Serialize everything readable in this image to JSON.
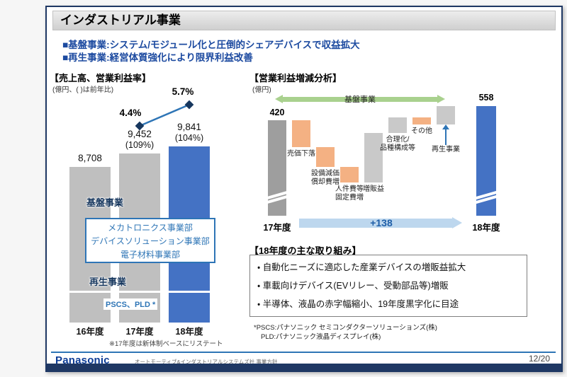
{
  "slide": {
    "title": "インダストリアル事業",
    "bullets": [
      "■基盤事業:システム/モジュール化と圧倒的シェアデバイスで収益拡大",
      "■再生事業:経営体質強化により限界利益改善"
    ]
  },
  "chart_data": [
    {
      "type": "bar",
      "title": "【売上高、営業利益率】",
      "unit_label": "(億円、( )は前年比)",
      "categories": [
        "16年度",
        "17年度",
        "18年度"
      ],
      "values": [
        8708,
        9452,
        9841
      ],
      "value_labels": [
        "8,708",
        "9,452",
        "9,841"
      ],
      "yoy_labels": [
        "(109%)",
        "(104%)"
      ],
      "line_series": {
        "name": "営業利益率",
        "points": [
          {
            "category": "17年度",
            "label": "4.4%"
          },
          {
            "category": "18年度",
            "label": "5.7%"
          }
        ]
      },
      "annotations": {
        "kiban_label": "基盤事業",
        "divisions": [
          "メカトロニクス事業部",
          "デバイスソリューション事業部",
          "電子材料事業部"
        ],
        "saisei_label": "再生事業",
        "saisei_detail": "PSCS、PLD *"
      },
      "footnote": "※17年度は新体制ベースにリステート",
      "colors": {
        "bar_gray": "#bfbfbf",
        "bar_blue": "#4472c4",
        "line": "#2e75b6",
        "marker": "#17375e"
      }
    },
    {
      "type": "waterfall",
      "title": "【営業利益増減分析】",
      "unit_label": "(億円)",
      "group_arrow_label": "基盤事業",
      "start": {
        "category": "17年度",
        "value": 420,
        "label": "420"
      },
      "end": {
        "category": "18年度",
        "value": 558,
        "label": "558"
      },
      "net_change_label": "+138",
      "segments": [
        {
          "label": "売価下落",
          "lines": [
            "売価下落"
          ],
          "direction": "decrease"
        },
        {
          "label": "設備減価償却費増",
          "lines": [
            "設備減価",
            "償却費増"
          ],
          "direction": "decrease"
        },
        {
          "label": "人件費等固定費増",
          "lines": [
            "人件費等",
            "固定費増"
          ],
          "direction": "decrease"
        },
        {
          "label": "増販益",
          "lines": [
            "増販益"
          ],
          "direction": "increase"
        },
        {
          "label": "合理化・品種構成等",
          "lines": [
            "合理化/",
            "品種構成等"
          ],
          "direction": "increase"
        },
        {
          "label": "その他",
          "lines": [
            "その他"
          ],
          "direction": "decrease"
        },
        {
          "label": "再生事業",
          "lines": [
            "再生事業"
          ],
          "direction": "increase"
        }
      ],
      "colors": {
        "decrease": "#f4b183",
        "increase": "#c9c9c9",
        "start_bar": "#9e9e9e",
        "end_bar": "#4472c4",
        "group_arrow": "#a9d18e",
        "net_arrow": "#bdd7ee"
      }
    }
  ],
  "initiatives": {
    "heading": "【18年度の主な取り組み】",
    "items": [
      "・ 自動化ニーズに適応した産業デバイスの増販益拡大",
      "・ 車載向けデバイス(EVリレー、受動部品等)増販",
      "・ 半導体、液晶の赤字幅縮小、19年度黒字化に目途"
    ]
  },
  "footnotes": [
    "*PSCS:パナソニック セミコンダクターソリューションズ(株)",
    "PLD:パナソニック液晶ディスプレイ(株)"
  ],
  "footer": {
    "logo": "Panasonic",
    "caption": "オートモーティブ&インダストリアルシステムズ社 事業方針",
    "page": "12/20"
  }
}
